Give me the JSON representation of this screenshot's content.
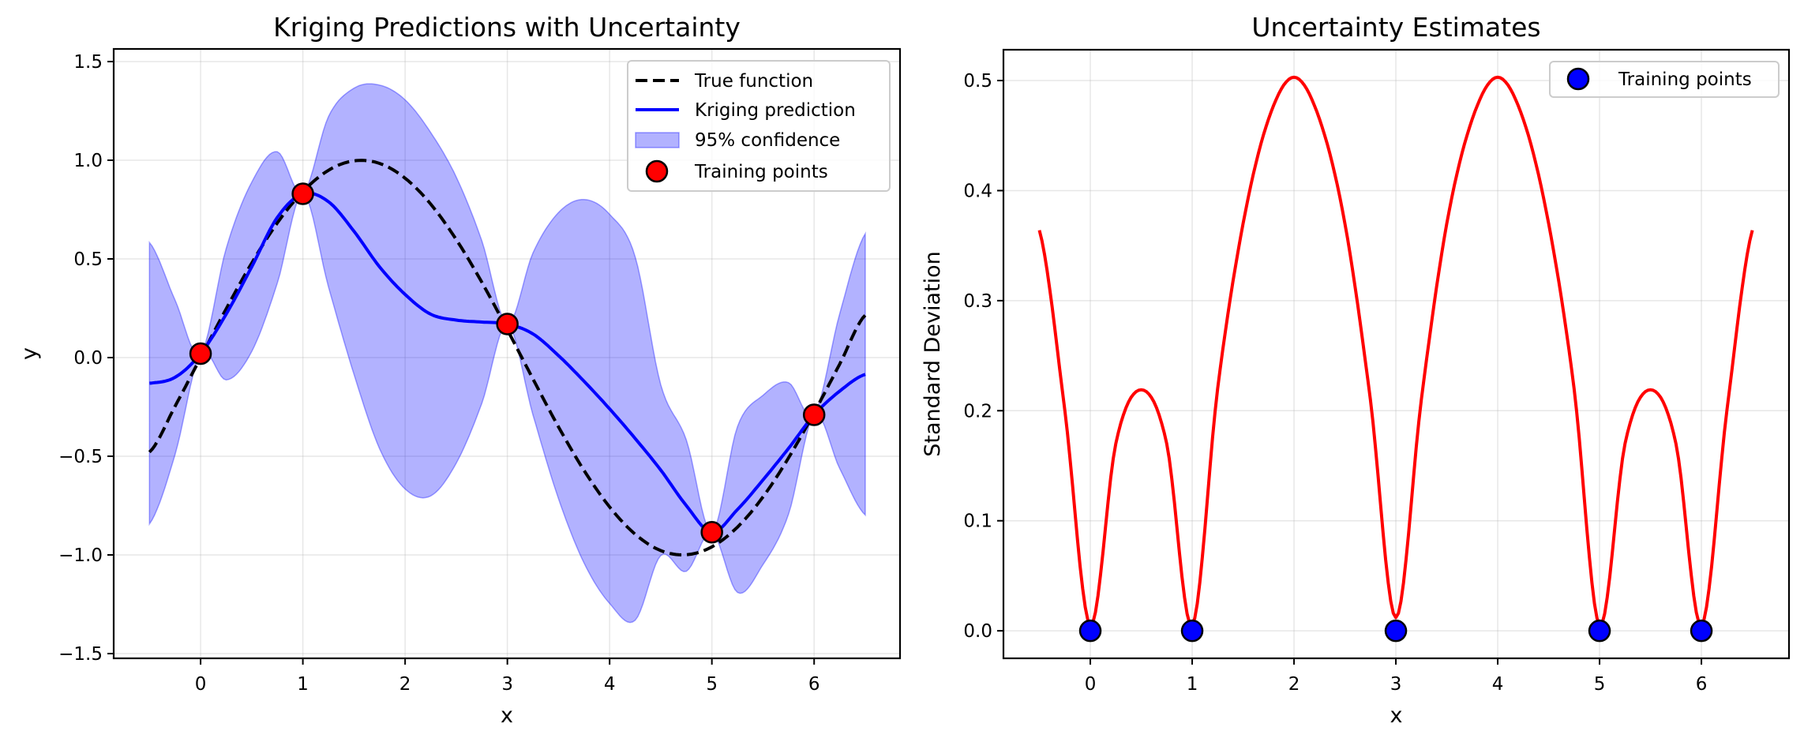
{
  "chart_data": [
    {
      "type": "line",
      "title": "Kriging Predictions with Uncertainty",
      "xlabel": "x",
      "ylabel": "y",
      "xlim": [
        -0.85,
        6.84
      ],
      "ylim": [
        -1.524,
        1.564
      ],
      "xticks": [
        0,
        1,
        2,
        3,
        4,
        5,
        6
      ],
      "xtick_labels": [
        "0",
        "1",
        "2",
        "3",
        "4",
        "5",
        "6"
      ],
      "yticks": [
        -1.5,
        -1.0,
        -0.5,
        0.0,
        0.5,
        1.0,
        1.5
      ],
      "ytick_labels": [
        "−1.5",
        "−1.0",
        "−0.5",
        "0.0",
        "0.5",
        "1.0",
        "1.5"
      ],
      "grid": true,
      "legend_position": "top-right",
      "x": [
        -0.5,
        -0.25,
        0,
        0.25,
        0.5,
        0.75,
        1,
        1.25,
        1.5,
        1.75,
        2,
        2.25,
        2.5,
        2.75,
        3,
        3.25,
        3.5,
        3.75,
        4,
        4.25,
        4.5,
        4.75,
        5,
        5.25,
        5.5,
        5.75,
        6,
        6.25,
        6.5
      ],
      "series": [
        {
          "name": "True function",
          "style": "dashed",
          "color": "#000000",
          "values": [
            -0.479,
            -0.247,
            0.0,
            0.247,
            0.479,
            0.682,
            0.841,
            0.949,
            0.997,
            0.984,
            0.909,
            0.778,
            0.598,
            0.382,
            0.141,
            -0.108,
            -0.351,
            -0.572,
            -0.757,
            -0.895,
            -0.978,
            -0.999,
            -0.959,
            -0.859,
            -0.706,
            -0.508,
            -0.279,
            -0.033,
            0.215
          ]
        },
        {
          "name": "Kriging prediction",
          "style": "solid",
          "color": "#0000ff",
          "values": [
            -0.13,
            -0.1,
            0.02,
            0.22,
            0.46,
            0.71,
            0.83,
            0.79,
            0.64,
            0.46,
            0.32,
            0.22,
            0.19,
            0.18,
            0.17,
            0.12,
            0.01,
            -0.12,
            -0.26,
            -0.41,
            -0.57,
            -0.75,
            -0.885,
            -0.77,
            -0.62,
            -0.46,
            -0.29,
            -0.17,
            -0.085
          ]
        },
        {
          "name": "95% confidence",
          "type": "area",
          "color": "#0000ff",
          "opacity": 0.3,
          "lower": [
            -0.843,
            -0.492,
            0.02,
            -0.113,
            0.031,
            0.377,
            0.83,
            0.359,
            -0.085,
            -0.461,
            -0.666,
            -0.701,
            -0.535,
            -0.232,
            0.17,
            -0.29,
            -0.715,
            -1.041,
            -1.246,
            -1.331,
            -1.003,
            -1.083,
            -0.885,
            -1.19,
            -1.049,
            -0.793,
            -0.29,
            -0.562,
            -0.798
          ],
          "upper": [
            0.583,
            0.292,
            0.02,
            0.553,
            0.889,
            1.043,
            0.83,
            1.221,
            1.365,
            1.381,
            1.306,
            1.141,
            0.915,
            0.592,
            0.17,
            0.53,
            0.735,
            0.801,
            0.726,
            0.511,
            -0.137,
            -0.417,
            -0.885,
            -0.35,
            -0.191,
            -0.127,
            -0.29,
            0.222,
            0.628
          ]
        },
        {
          "name": "Training points",
          "type": "scatter",
          "color": "#ff0000",
          "points": [
            [
              0,
              0.02
            ],
            [
              1,
              0.83
            ],
            [
              3,
              0.17
            ],
            [
              5,
              -0.885
            ],
            [
              6,
              -0.29
            ]
          ]
        }
      ]
    },
    {
      "type": "line",
      "title": "Uncertainty Estimates",
      "xlabel": "x",
      "ylabel": "Standard Deviation",
      "xlim": [
        -0.853,
        6.86
      ],
      "ylim": [
        -0.025,
        0.528
      ],
      "xticks": [
        0,
        1,
        2,
        3,
        4,
        5,
        6
      ],
      "xtick_labels": [
        "0",
        "1",
        "2",
        "3",
        "4",
        "5",
        "6"
      ],
      "yticks": [
        0.0,
        0.1,
        0.2,
        0.3,
        0.4,
        0.5
      ],
      "ytick_labels": [
        "0.0",
        "0.1",
        "0.2",
        "0.3",
        "0.4",
        "0.5"
      ],
      "grid": true,
      "legend_position": "top-right",
      "x": [
        -0.5,
        -0.25,
        0,
        0.25,
        0.5,
        0.75,
        1,
        1.25,
        1.5,
        1.75,
        2,
        2.25,
        2.5,
        2.75,
        3,
        3.25,
        3.5,
        3.75,
        4,
        4.25,
        4.5,
        4.75,
        5,
        5.25,
        5.5,
        5.75,
        6,
        6.25,
        6.5
      ],
      "series": [
        {
          "name": "Standard deviation",
          "style": "solid",
          "color": "#ff0000",
          "values": [
            0.364,
            0.2,
            0.005,
            0.17,
            0.219,
            0.17,
            0.005,
            0.22,
            0.37,
            0.465,
            0.503,
            0.465,
            0.37,
            0.21,
            0.012,
            0.21,
            0.37,
            0.465,
            0.503,
            0.465,
            0.37,
            0.22,
            0.005,
            0.17,
            0.219,
            0.17,
            0.005,
            0.2,
            0.364
          ]
        },
        {
          "name": "Training points",
          "type": "scatter",
          "color": "#0000ff",
          "points": [
            [
              0,
              0.0
            ],
            [
              1,
              0.0
            ],
            [
              3,
              0.0
            ],
            [
              5,
              0.0
            ],
            [
              6,
              0.0
            ]
          ]
        }
      ]
    }
  ],
  "legends": {
    "left": [
      "True function",
      "Kriging prediction",
      "95% confidence",
      "Training points"
    ],
    "right": [
      "Training points"
    ]
  }
}
